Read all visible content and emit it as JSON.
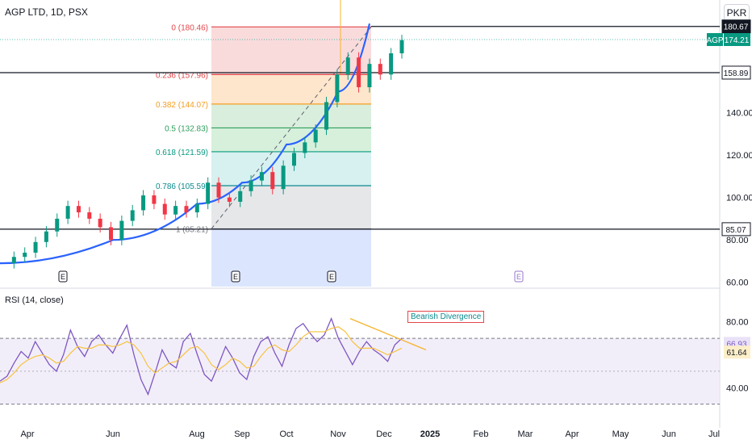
{
  "header": {
    "symbol_line": "AGP LTD, 1D, PSX",
    "currency": "PKR"
  },
  "chart_data": [
    {
      "type": "candlestick",
      "title": "AGP LTD, 1D, PSX",
      "currency": "PKR",
      "x_ticks": [
        "Apr",
        "Jun",
        "Aug",
        "Sep",
        "Oct",
        "Nov",
        "Dec",
        "2025",
        "Feb",
        "Mar",
        "Apr",
        "May",
        "Jun",
        "Jul"
      ],
      "y_ticks": [
        60,
        80,
        100,
        120,
        140
      ],
      "ylim": [
        58,
        184
      ],
      "grid": false,
      "price_path": [
        [
          "Apr",
          69
        ],
        [
          "Apr",
          72
        ],
        [
          "Apr",
          74
        ],
        [
          "Apr",
          79
        ],
        [
          "Apr",
          84
        ],
        [
          "Apr",
          90
        ],
        [
          "Jun",
          96
        ],
        [
          "Jun",
          93
        ],
        [
          "Jun",
          90
        ],
        [
          "Jun",
          86
        ],
        [
          "Jun",
          80
        ],
        [
          "Jun",
          89
        ],
        [
          "Jun",
          94
        ],
        [
          "Jun",
          101
        ],
        [
          "Aug",
          97
        ],
        [
          "Aug",
          92
        ],
        [
          "Aug",
          96
        ],
        [
          "Aug",
          93
        ],
        [
          "Aug",
          97
        ],
        [
          "Sep",
          107
        ],
        [
          "Sep",
          100
        ],
        [
          "Sep",
          98
        ],
        [
          "Sep",
          103
        ],
        [
          "Oct",
          108
        ],
        [
          "Oct",
          112
        ],
        [
          "Oct",
          104
        ],
        [
          "Oct",
          115
        ],
        [
          "Oct",
          121
        ],
        [
          "Oct",
          126
        ],
        [
          "Nov",
          132
        ],
        [
          "Nov",
          145
        ],
        [
          "Nov",
          158
        ],
        [
          "Nov",
          166
        ],
        [
          "Nov",
          152
        ],
        [
          "Nov",
          163
        ],
        [
          "Dec",
          158
        ],
        [
          "Dec",
          168
        ],
        [
          "Dec",
          174.21
        ]
      ],
      "last_price": {
        "label": "AGP",
        "value": "174.21"
      },
      "price_labels": [
        "180.67",
        "158.89",
        "85.07"
      ],
      "horizontal_levels": [
        180.67,
        158.89,
        85.07
      ],
      "fibonacci": {
        "levels": [
          {
            "label": "0 (180.46)",
            "ratio": 0,
            "value": 180.46,
            "color": "#e2474b",
            "fill": "#f8d7d8"
          },
          {
            "label": "0.236 (157.96)",
            "ratio": 0.236,
            "value": 157.96,
            "color": "#e2474b",
            "fill": "#fde3c7"
          },
          {
            "label": "0.382 (144.07)",
            "ratio": 0.382,
            "value": 144.07,
            "color": "#f59e22",
            "fill": "#d6ecd9"
          },
          {
            "label": "0.5 (132.83)",
            "ratio": 0.5,
            "value": 132.83,
            "color": "#2e9e5c",
            "fill": "#d1eed8"
          },
          {
            "label": "0.618 (121.59)",
            "ratio": 0.618,
            "value": 121.59,
            "color": "#089981",
            "fill": "#d3efee"
          },
          {
            "label": "0.786 (105.59)",
            "ratio": 0.786,
            "value": 105.59,
            "color": "#0b8a8f",
            "fill": "#e3e4e7"
          },
          {
            "label": "1 (85.21)",
            "ratio": 1,
            "value": 85.21,
            "color": "#787b86",
            "fill": "#dbe5fd"
          }
        ]
      },
      "curve": {
        "color": "#2962ff",
        "points": [
          [
            "Apr",
            69
          ],
          [
            "Jun",
            80
          ],
          [
            "Aug",
            97
          ],
          [
            "Sep",
            107
          ],
          [
            "Oct",
            125
          ],
          [
            "Nov",
            150
          ],
          [
            "Nov",
            182
          ]
        ]
      },
      "earnings_markers": [
        {
          "label": "E",
          "x": "Apr",
          "upcoming": false
        },
        {
          "label": "E",
          "x": "Aug",
          "upcoming": false
        },
        {
          "label": "E",
          "x": "Oct",
          "upcoming": false
        },
        {
          "label": "E",
          "x": "Feb",
          "upcoming": true
        }
      ]
    },
    {
      "type": "line",
      "title": "RSI (14, close)",
      "y_ticks": [
        40,
        80
      ],
      "ylim": [
        22,
        98
      ],
      "bands": [
        70,
        30
      ],
      "band_labels": [],
      "rsi_label": "66.93",
      "signal_label": "61.64",
      "series": [
        {
          "name": "RSI",
          "color": "#7e57c2",
          "values": [
            44,
            47,
            55,
            62,
            58,
            68,
            61,
            54,
            50,
            60,
            75,
            65,
            59,
            68,
            72,
            66,
            61,
            70,
            78,
            60,
            45,
            36,
            49,
            63,
            55,
            52,
            68,
            73,
            60,
            48,
            44,
            54,
            65,
            58,
            49,
            45,
            59,
            68,
            71,
            61,
            53,
            66,
            76,
            79,
            73,
            68,
            72,
            82,
            70,
            62,
            54,
            62,
            68,
            63,
            60,
            56,
            66,
            70
          ]
        },
        {
          "name": "MA",
          "color": "#f7c341",
          "values": [
            43,
            45,
            49,
            54,
            57,
            59,
            60,
            58,
            55,
            56,
            61,
            65,
            64,
            64,
            66,
            66,
            65,
            66,
            68,
            66,
            61,
            53,
            49,
            52,
            55,
            56,
            60,
            64,
            65,
            61,
            54,
            51,
            54,
            58,
            56,
            52,
            53,
            59,
            64,
            66,
            63,
            62,
            66,
            71,
            74,
            74,
            74,
            76,
            77,
            74,
            68,
            64,
            64,
            64,
            62,
            60,
            62,
            64
          ]
        }
      ],
      "annotations": [
        {
          "text": "Bearish Divergence"
        }
      ]
    }
  ]
}
